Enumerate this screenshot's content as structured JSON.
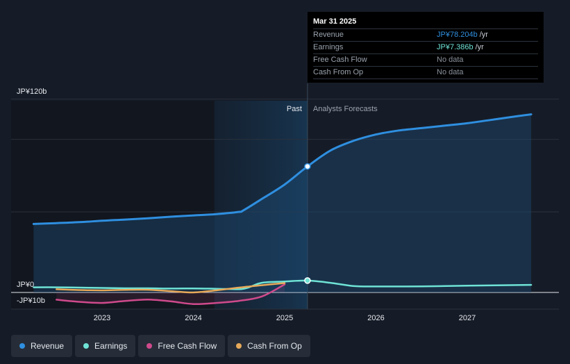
{
  "chart_data": {
    "type": "line",
    "x_ticks": [
      "2023",
      "2024",
      "2025",
      "2026",
      "2027"
    ],
    "y_axis_labels": {
      "top": "JP¥120b",
      "zero": "JP¥0",
      "bottom": "-JP¥10b"
    },
    "ylim": [
      -10,
      120
    ],
    "divider_date": 2025.25,
    "regions": {
      "past": "Past",
      "forecast": "Analysts Forecasts"
    },
    "series": [
      {
        "name": "Revenue",
        "color": "#2f8fe0",
        "points": [
          [
            2022.25,
            42.5
          ],
          [
            2022.5,
            43.0
          ],
          [
            2022.75,
            43.6
          ],
          [
            2023.0,
            44.5
          ],
          [
            2023.25,
            45.2
          ],
          [
            2023.5,
            46.0
          ],
          [
            2023.75,
            47.0
          ],
          [
            2024.0,
            47.8
          ],
          [
            2024.25,
            48.6
          ],
          [
            2024.5,
            50.0
          ],
          [
            2024.55,
            51.0
          ],
          [
            2024.75,
            58.0
          ],
          [
            2025.0,
            67.0
          ],
          [
            2025.25,
            78.204
          ],
          [
            2025.5,
            88.0
          ],
          [
            2025.75,
            94.0
          ],
          [
            2026.0,
            98.0
          ],
          [
            2026.25,
            100.5
          ],
          [
            2026.5,
            102.0
          ],
          [
            2026.75,
            103.5
          ],
          [
            2027.0,
            105.0
          ],
          [
            2027.25,
            107.0
          ],
          [
            2027.5,
            109.0
          ],
          [
            2027.7,
            110.5
          ]
        ]
      },
      {
        "name": "Earnings",
        "color": "#6fe3d6",
        "points": [
          [
            2022.25,
            3.2
          ],
          [
            2022.5,
            3.2
          ],
          [
            2022.75,
            3.0
          ],
          [
            2023.0,
            2.8
          ],
          [
            2023.25,
            2.6
          ],
          [
            2023.5,
            2.6
          ],
          [
            2023.75,
            2.4
          ],
          [
            2024.0,
            2.5
          ],
          [
            2024.25,
            2.3
          ],
          [
            2024.5,
            2.0
          ],
          [
            2024.6,
            3.0
          ],
          [
            2024.75,
            6.0
          ],
          [
            2025.0,
            6.8
          ],
          [
            2025.25,
            7.386
          ],
          [
            2025.5,
            6.0
          ],
          [
            2025.75,
            4.0
          ],
          [
            2026.0,
            3.7
          ],
          [
            2026.5,
            3.8
          ],
          [
            2027.0,
            4.2
          ],
          [
            2027.7,
            4.7
          ]
        ]
      },
      {
        "name": "Free Cash Flow",
        "color": "#cf4a8c",
        "points": [
          [
            2022.5,
            -4.5
          ],
          [
            2022.75,
            -5.8
          ],
          [
            2023.0,
            -6.5
          ],
          [
            2023.25,
            -5.3
          ],
          [
            2023.5,
            -4.4
          ],
          [
            2023.75,
            -5.5
          ],
          [
            2024.0,
            -7.2
          ],
          [
            2024.25,
            -6.5
          ],
          [
            2024.5,
            -5.2
          ],
          [
            2024.75,
            -2.5
          ],
          [
            2025.0,
            5.0
          ]
        ]
      },
      {
        "name": "Cash From Op",
        "color": "#e7a95a",
        "points": [
          [
            2022.5,
            2.0
          ],
          [
            2022.75,
            1.5
          ],
          [
            2023.0,
            1.3
          ],
          [
            2023.25,
            1.6
          ],
          [
            2023.5,
            1.7
          ],
          [
            2023.75,
            0.8
          ],
          [
            2024.0,
            0.0
          ],
          [
            2024.25,
            1.3
          ],
          [
            2024.5,
            3.0
          ],
          [
            2024.75,
            4.5
          ],
          [
            2025.0,
            5.8
          ]
        ]
      }
    ],
    "grid": true,
    "legend_position": "bottom-left"
  },
  "tooltip": {
    "date": "Mar 31 2025",
    "rows": [
      {
        "label": "Revenue",
        "value": "JP¥78.204b",
        "unit": "/yr",
        "color": "#2f8fe0"
      },
      {
        "label": "Earnings",
        "value": "JP¥7.386b",
        "unit": "/yr",
        "color": "#6fe3d6"
      },
      {
        "label": "Free Cash Flow",
        "value": "No data",
        "unit": "",
        "color": "#6c737d"
      },
      {
        "label": "Cash From Op",
        "value": "No data",
        "unit": "",
        "color": "#6c737d"
      }
    ]
  },
  "legend": [
    {
      "label": "Revenue",
      "color": "#2f8fe0"
    },
    {
      "label": "Earnings",
      "color": "#6fe3d6"
    },
    {
      "label": "Free Cash Flow",
      "color": "#cf4a8c"
    },
    {
      "label": "Cash From Op",
      "color": "#e7a95a"
    }
  ]
}
